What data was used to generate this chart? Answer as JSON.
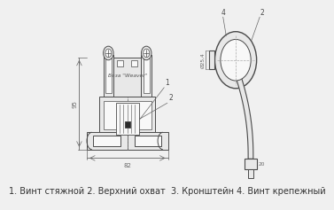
{
  "caption": "1. Винт стяжной 2. Верхний охват  3. Кронштейн 4. Винт крепежный",
  "caption_fontsize": 7.0,
  "bg_color": "#f0f0f0",
  "line_color": "#4a4a4a",
  "fill_color": "#dcdcdc",
  "fill_light": "#e8e8e8",
  "white": "#f8f8f8",
  "dim_color": "#666666",
  "dark_fill": "#2a2a2a"
}
